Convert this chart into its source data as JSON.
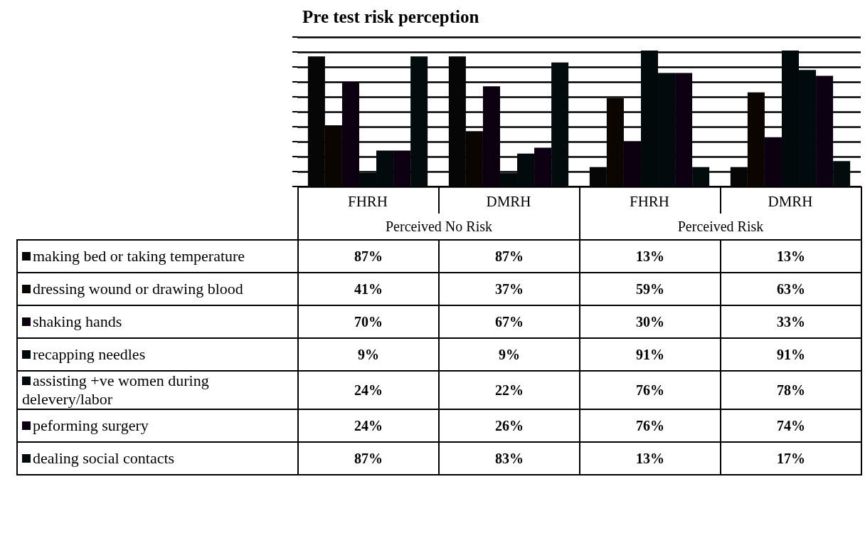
{
  "chart_data": {
    "type": "bar",
    "title": "Pre test risk perception",
    "categories": [
      "FHRH",
      "DMRH",
      "FHRH",
      "DMRH"
    ],
    "annotations": [
      "Perceived No Risk",
      "Perceived Risk"
    ],
    "series": [
      {
        "name": "making bed or taking temperature",
        "color": "#060606",
        "values": [
          87,
          87,
          13,
          13
        ],
        "value_labels": [
          "87%",
          "87%",
          "13%",
          "13%"
        ]
      },
      {
        "name": "dressing wound or drawing blood",
        "color": "#0b0500",
        "values": [
          41,
          37,
          59,
          63
        ],
        "value_labels": [
          "41%",
          "37%",
          "59%",
          "63%"
        ]
      },
      {
        "name": "shaking hands",
        "color": "#0c0010",
        "values": [
          70,
          67,
          30,
          33
        ],
        "value_labels": [
          "70%",
          "67%",
          "30%",
          "33%"
        ]
      },
      {
        "name": "recapping needles",
        "color": "#02090b",
        "values": [
          9,
          9,
          91,
          91
        ],
        "value_labels": [
          "9%",
          "9%",
          "91%",
          "91%"
        ]
      },
      {
        "name": "assisting +ve women during delevery/labor",
        "color": "#030a0d",
        "values": [
          24,
          22,
          76,
          78
        ],
        "value_labels": [
          "24%",
          "22%",
          "76%",
          "78%"
        ]
      },
      {
        "name": "peforming surgery",
        "color": "#0d0012",
        "values": [
          24,
          26,
          76,
          74
        ],
        "value_labels": [
          "24%",
          "26%",
          "76%",
          "74%"
        ]
      },
      {
        "name": "dealing social contacts",
        "color": "#040b0d",
        "values": [
          87,
          83,
          13,
          17
        ],
        "value_labels": [
          "87%",
          "83%",
          "13%",
          "17%"
        ]
      }
    ],
    "ylim": [
      0,
      100
    ],
    "yticks": [
      {
        "value": 0,
        "label": null
      },
      {
        "value": 10,
        "label": null
      },
      {
        "value": 20,
        "label": null
      },
      {
        "value": 30,
        "label": null
      },
      {
        "value": 40,
        "label": null
      },
      {
        "value": 50,
        "label": null
      },
      {
        "value": 60,
        "label": null
      },
      {
        "value": 70,
        "label": null
      },
      {
        "value": 80,
        "label": null
      },
      {
        "value": 90,
        "label": null
      },
      {
        "value": 100,
        "label": null
      }
    ],
    "grid": "y",
    "legend": "bottom left",
    "tick_labels": "x"
  }
}
